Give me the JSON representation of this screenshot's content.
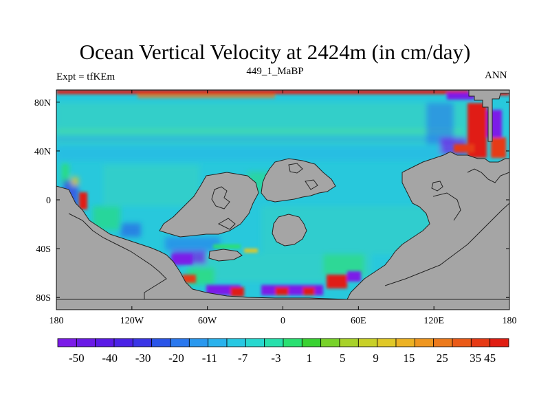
{
  "title": "Ocean Vertical Velocity at 2424m (in cm/day)",
  "left_label": "Expt = tfKEm",
  "center_label": "449_1_MaBP",
  "right_label": "ANN",
  "map": {
    "lon_range": [
      -180,
      180
    ],
    "lat_range": [
      -90,
      90
    ],
    "land_color": "#a5a5a5",
    "ocean_base_color": "#28c8dc",
    "lat_ticks": [
      {
        "value": 80,
        "label": "80N"
      },
      {
        "value": 40,
        "label": "40N"
      },
      {
        "value": 0,
        "label": "0"
      },
      {
        "value": -40,
        "label": "40S"
      },
      {
        "value": -80,
        "label": "80S"
      }
    ],
    "lon_ticks": [
      {
        "value": -180,
        "label": "180"
      },
      {
        "value": -120,
        "label": "120W"
      },
      {
        "value": -60,
        "label": "60W"
      },
      {
        "value": 0,
        "label": "0"
      },
      {
        "value": 60,
        "label": "60E"
      },
      {
        "value": 120,
        "label": "120E"
      },
      {
        "value": 180,
        "label": "180"
      }
    ]
  },
  "colorbar": {
    "colors": [
      "#7b1be8",
      "#6a1ae6",
      "#5a1ae6",
      "#4a22e6",
      "#3a35e6",
      "#2a55e8",
      "#2a78ee",
      "#2a98ee",
      "#2ab2ec",
      "#28c8e2",
      "#28d8cf",
      "#28e0ac",
      "#2ae072",
      "#3ad232",
      "#78d22a",
      "#a8d22a",
      "#c8d028",
      "#e0c828",
      "#ecb224",
      "#ee9620",
      "#ec7a1c",
      "#ea5a18",
      "#e63a14",
      "#e01e12"
    ],
    "labels": [
      "-50",
      "-40",
      "-30",
      "-20",
      "-11",
      "-7",
      "-3",
      "1",
      "5",
      "9",
      "15",
      "25",
      "35",
      "45"
    ]
  }
}
